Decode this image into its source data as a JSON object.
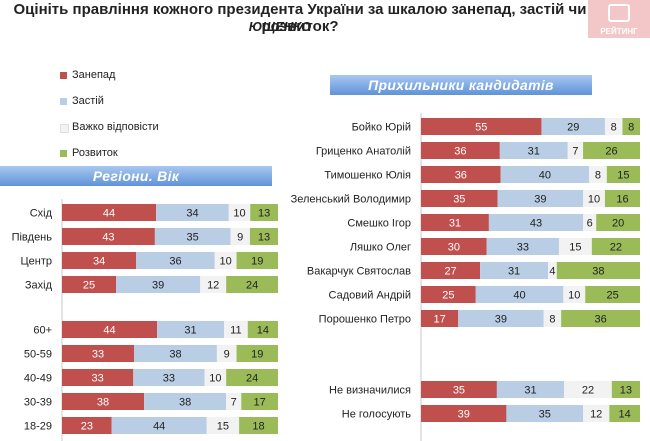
{
  "header": {
    "title": "Оцініть правління кожного президента України за шкалою занепад, застій чи розвиток?",
    "subtitle": "ЮЩЕНКО",
    "logo_text": "РЕЙТИНГ"
  },
  "colors": {
    "decline": "#c0504d",
    "stagnation": "#b9cde5",
    "hard_to_say": "#f2f2f2",
    "development": "#9bbb59",
    "banner": "#6f9fdc"
  },
  "legend": [
    {
      "label": "Занепад",
      "color": "#c0504d"
    },
    {
      "label": "Застій",
      "color": "#b9cde5"
    },
    {
      "label": "Важко відповісти",
      "color": "#f2f2f2"
    },
    {
      "label": "Розвиток",
      "color": "#9bbb59"
    }
  ],
  "chart_data": [
    {
      "type": "bar",
      "stacked": true,
      "orientation": "horizontal",
      "title": "Регіони. Вік",
      "series_names": [
        "Занепад",
        "Застій",
        "Важко відповісти",
        "Розвиток"
      ],
      "groups": [
        {
          "rows": [
            {
              "label": "Схід",
              "values": [
                44,
                34,
                10,
                13
              ]
            },
            {
              "label": "Південь",
              "values": [
                43,
                35,
                9,
                13
              ]
            },
            {
              "label": "Центр",
              "values": [
                34,
                36,
                10,
                19
              ]
            },
            {
              "label": "Захід",
              "values": [
                25,
                39,
                12,
                24
              ]
            }
          ]
        },
        {
          "rows": [
            {
              "label": "60+",
              "values": [
                44,
                31,
                11,
                14
              ]
            },
            {
              "label": "50-59",
              "values": [
                33,
                38,
                9,
                19
              ]
            },
            {
              "label": "40-49",
              "values": [
                33,
                33,
                10,
                24
              ]
            },
            {
              "label": "30-39",
              "values": [
                38,
                38,
                7,
                17
              ]
            },
            {
              "label": "18-29",
              "values": [
                23,
                44,
                15,
                18
              ]
            }
          ]
        }
      ]
    },
    {
      "type": "bar",
      "stacked": true,
      "orientation": "horizontal",
      "title": "Прихильники кандидатів",
      "series_names": [
        "Занепад",
        "Застій",
        "Важко відповісти",
        "Розвиток"
      ],
      "groups": [
        {
          "rows": [
            {
              "label": "Бойко Юрій",
              "values": [
                55,
                29,
                8,
                8
              ]
            },
            {
              "label": "Гриценко Анатолій",
              "values": [
                36,
                31,
                7,
                26
              ]
            },
            {
              "label": "Тимошенко Юлія",
              "values": [
                36,
                40,
                8,
                15
              ]
            },
            {
              "label": "Зеленський Володимир",
              "values": [
                35,
                39,
                10,
                16
              ]
            },
            {
              "label": "Смешко Ігор",
              "values": [
                31,
                43,
                6,
                20
              ]
            },
            {
              "label": "Ляшко Олег",
              "values": [
                30,
                33,
                15,
                22
              ]
            },
            {
              "label": "Вакарчук Святослав",
              "values": [
                27,
                31,
                4,
                38
              ]
            },
            {
              "label": "Садовий Андрій",
              "values": [
                25,
                40,
                10,
                25
              ]
            },
            {
              "label": "Порошенко Петро",
              "values": [
                17,
                39,
                8,
                36
              ]
            }
          ]
        },
        {
          "rows": [
            {
              "label": "Не визначилися",
              "values": [
                35,
                31,
                22,
                13
              ]
            },
            {
              "label": "Не голосують",
              "values": [
                39,
                35,
                12,
                14
              ]
            }
          ]
        }
      ]
    }
  ]
}
